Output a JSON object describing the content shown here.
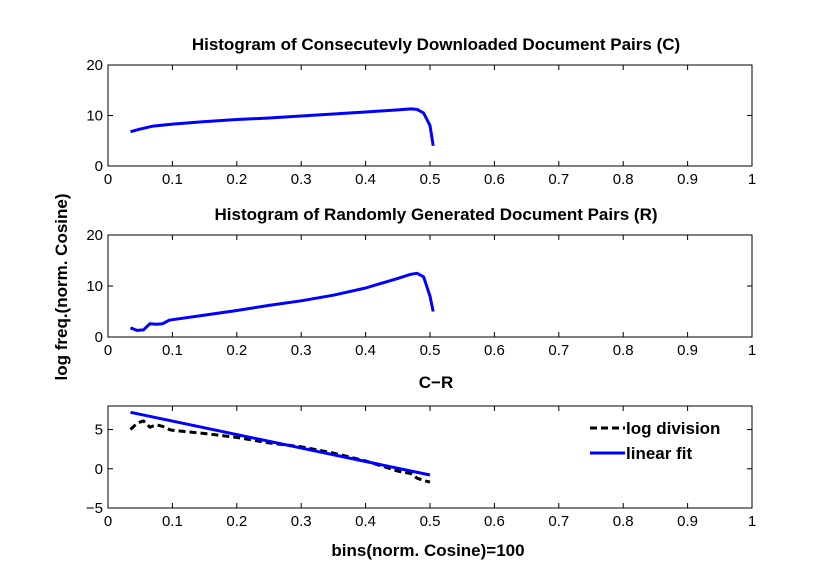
{
  "figure": {
    "ylabel": "log freq.(norm. Cosine)",
    "xlabel": "bins(norm. Cosine)=100"
  },
  "chart_data": [
    {
      "type": "line",
      "title": "Histogram of Consecutevly Downloaded Document Pairs (C)",
      "xlim": [
        0,
        1
      ],
      "ylim": [
        0,
        20
      ],
      "xticks": [
        "0",
        "0.1",
        "0.2",
        "0.3",
        "0.4",
        "0.5",
        "0.6",
        "0.7",
        "0.8",
        "0.9",
        "1"
      ],
      "yticks": [
        "0",
        "10",
        "20"
      ],
      "series": [
        {
          "color": "#0000ff",
          "dash": "solid",
          "x": [
            0.035,
            0.05,
            0.07,
            0.1,
            0.15,
            0.2,
            0.25,
            0.3,
            0.35,
            0.4,
            0.45,
            0.47,
            0.48,
            0.49,
            0.5,
            0.505
          ],
          "y": [
            6.8,
            7.3,
            7.9,
            8.3,
            8.8,
            9.2,
            9.5,
            9.9,
            10.3,
            10.7,
            11.1,
            11.3,
            11.2,
            10.5,
            8,
            4
          ]
        }
      ]
    },
    {
      "type": "line",
      "title": "Histogram of Randomly Generated Document Pairs (R)",
      "xlim": [
        0,
        1
      ],
      "ylim": [
        0,
        20
      ],
      "xticks": [
        "0",
        "0.1",
        "0.2",
        "0.3",
        "0.4",
        "0.5",
        "0.6",
        "0.7",
        "0.8",
        "0.9",
        "1"
      ],
      "yticks": [
        "0",
        "10",
        "20"
      ],
      "series": [
        {
          "color": "#0000ff",
          "dash": "solid",
          "x": [
            0.035,
            0.045,
            0.055,
            0.065,
            0.075,
            0.085,
            0.095,
            0.1,
            0.15,
            0.2,
            0.25,
            0.3,
            0.35,
            0.4,
            0.45,
            0.47,
            0.48,
            0.49,
            0.5,
            0.505
          ],
          "y": [
            1.8,
            1.3,
            1.4,
            2.6,
            2.5,
            2.6,
            3.3,
            3.4,
            4.3,
            5.2,
            6.2,
            7.1,
            8.2,
            9.6,
            11.5,
            12.3,
            12.5,
            11.8,
            8,
            5
          ]
        }
      ]
    },
    {
      "type": "line",
      "title": "C−R",
      "xlim": [
        0,
        1
      ],
      "ylim": [
        -5,
        8
      ],
      "xticks": [
        "0",
        "0.1",
        "0.2",
        "0.3",
        "0.4",
        "0.5",
        "0.6",
        "0.7",
        "0.8",
        "0.9",
        "1"
      ],
      "yticks": [
        "−5",
        "0",
        "5"
      ],
      "ytick_values": [
        -5,
        0,
        5
      ],
      "legend": {
        "placement": "top-right"
      },
      "series": [
        {
          "name": "log division",
          "color": "#000000",
          "dash": "dashed",
          "x": [
            0.035,
            0.045,
            0.055,
            0.065,
            0.075,
            0.085,
            0.095,
            0.1,
            0.15,
            0.2,
            0.25,
            0.3,
            0.35,
            0.4,
            0.45,
            0.47,
            0.48,
            0.49,
            0.5
          ],
          "y": [
            5,
            5.8,
            6.1,
            5.3,
            5.6,
            5.4,
            5.0,
            4.9,
            4.5,
            4.0,
            3.3,
            2.8,
            2.0,
            1.0,
            -0.3,
            -0.6,
            -1.2,
            -1.5,
            -1.7
          ]
        },
        {
          "name": "linear fit",
          "color": "#0000ff",
          "dash": "solid",
          "x": [
            0.035,
            0.5
          ],
          "y": [
            7.2,
            -0.8
          ]
        }
      ]
    }
  ]
}
